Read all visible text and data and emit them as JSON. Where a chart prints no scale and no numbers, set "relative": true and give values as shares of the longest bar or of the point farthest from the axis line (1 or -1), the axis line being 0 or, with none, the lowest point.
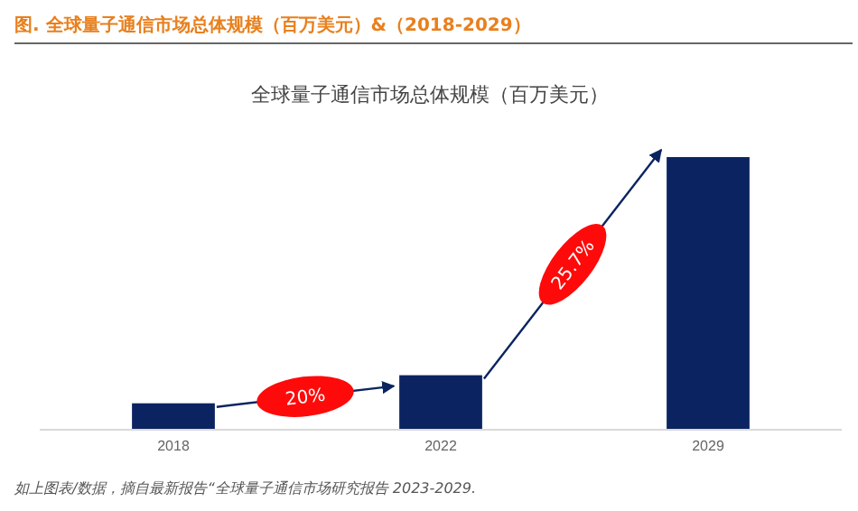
{
  "chart_data": {
    "type": "bar",
    "relative": true,
    "title": "图.  全球量子通信市场总体规模（百万美元）&（2018-2029）",
    "subtitle": "全球量子通信市场总体规模（百万美元）",
    "categories": [
      "2018",
      "2022",
      "2029"
    ],
    "values": [
      0.097,
      0.2,
      1
    ],
    "color": "#0b2461",
    "annotations": [
      "20%",
      "25.7%",
      "如上图表/数据，摘自最新报告“全球量子通信市场研究报告 2023-2029."
    ]
  }
}
